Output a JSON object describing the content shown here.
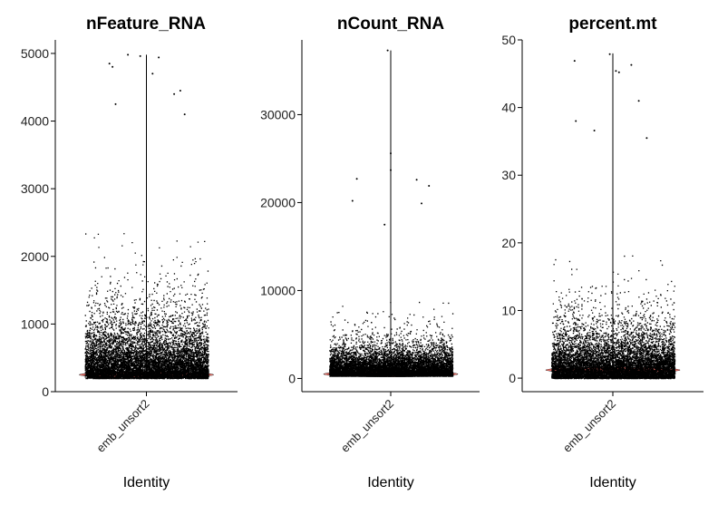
{
  "chart_data": [
    {
      "type": "violin",
      "title": "nFeature_RNA",
      "xlabel": "Identity",
      "ylabel": "",
      "categories": [
        "emb_unsort2"
      ],
      "ylim": [
        0,
        5200
      ],
      "yticks": [
        0,
        1000,
        2000,
        3000,
        4000,
        5000
      ],
      "data_range": [
        200,
        4980
      ],
      "median": 250,
      "points": "jittered single cells, density highest near 200-1000, sparse above 3000",
      "outliers": [
        {
          "x": -0.6,
          "y": 4850
        },
        {
          "x": -0.55,
          "y": 4800
        },
        {
          "x": -0.3,
          "y": 4980
        },
        {
          "x": -0.1,
          "y": 4960
        },
        {
          "x": 0.2,
          "y": 4940
        },
        {
          "x": 0.55,
          "y": 4450
        },
        {
          "x": 0.45,
          "y": 4400
        },
        {
          "x": -0.5,
          "y": 4250
        },
        {
          "x": 0.1,
          "y": 4700
        },
        {
          "x": 0.62,
          "y": 4100
        }
      ],
      "legend": "none",
      "grid": false
    },
    {
      "type": "violin",
      "title": "nCount_RNA",
      "xlabel": "Identity",
      "ylabel": "",
      "categories": [
        "emb_unsort2"
      ],
      "ylim": [
        -1500,
        38500
      ],
      "yticks": [
        0,
        10000,
        20000,
        30000
      ],
      "data_range": [
        300,
        37300
      ],
      "median": 500,
      "points": "jittered single cells, dense below 5000, sparse to ~23000",
      "outliers": [
        {
          "x": -0.05,
          "y": 37300
        },
        {
          "x": 0.0,
          "y": 25600
        },
        {
          "x": 0.0,
          "y": 23700
        },
        {
          "x": -0.55,
          "y": 22700
        },
        {
          "x": 0.42,
          "y": 22600
        },
        {
          "x": 0.62,
          "y": 21900
        },
        {
          "x": -0.62,
          "y": 20200
        },
        {
          "x": 0.5,
          "y": 19900
        },
        {
          "x": -0.1,
          "y": 17500
        }
      ],
      "legend": "none",
      "grid": false
    },
    {
      "type": "violin",
      "title": "percent.mt",
      "xlabel": "Identity",
      "ylabel": "",
      "categories": [
        "emb_unsort2"
      ],
      "ylim": [
        -2,
        50
      ],
      "yticks": [
        0,
        10,
        20,
        30,
        40,
        50
      ],
      "data_range": [
        0,
        48
      ],
      "median": 1.2,
      "points": "jittered single cells, dense below 8, sparse to ~48",
      "outliers": [
        {
          "x": -0.62,
          "y": 46.9
        },
        {
          "x": -0.05,
          "y": 47.9
        },
        {
          "x": 0.3,
          "y": 46.3
        },
        {
          "x": 0.05,
          "y": 45.4
        },
        {
          "x": 0.1,
          "y": 45.2
        },
        {
          "x": -0.6,
          "y": 38.0
        },
        {
          "x": 0.42,
          "y": 41.0
        },
        {
          "x": 0.55,
          "y": 35.5
        },
        {
          "x": -0.3,
          "y": 36.6
        }
      ],
      "legend": "none",
      "grid": false
    }
  ],
  "colors": {
    "violin_fill": "#f8766d",
    "points": "#000000",
    "axis": "#000000"
  }
}
